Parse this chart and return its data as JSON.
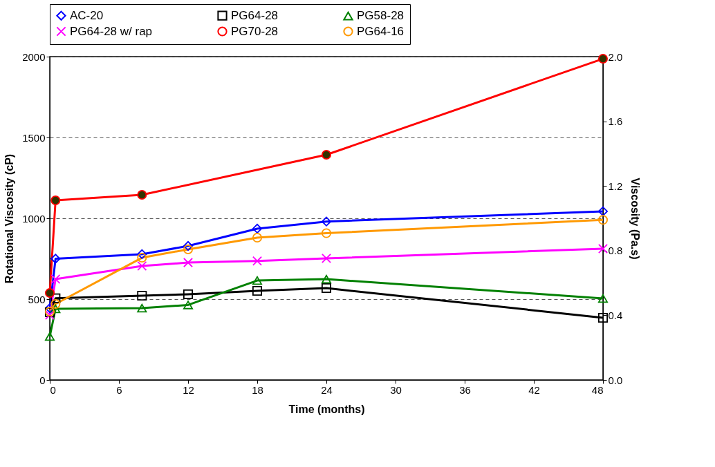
{
  "chart_data": {
    "type": "line",
    "xlabel": "Time (months)",
    "ylabel": "Rotational Viscosity (cP)",
    "y2label": "Viscosity (Pa.s)",
    "xlim": [
      0,
      48
    ],
    "xticks": [
      0,
      6,
      12,
      18,
      24,
      30,
      36,
      42,
      48
    ],
    "ylim": [
      0,
      2000
    ],
    "yticks": [
      0,
      500,
      1000,
      1500,
      2000
    ],
    "y2lim": [
      0,
      2
    ],
    "y2ticks": [
      {
        "value": 0,
        "label": "0.0"
      },
      {
        "value": 0.4,
        "label": "0.4"
      },
      {
        "value": 0.8,
        "label": "0.8"
      },
      {
        "value": 1.2,
        "label": "1.2"
      },
      {
        "value": 1.6,
        "label": "1.6"
      },
      {
        "value": 2,
        "label": "2.0"
      }
    ],
    "grid": "y",
    "legend": "top",
    "line_style": "solid",
    "series": [
      {
        "name": "AC-20",
        "color": "#0000ff",
        "marker": "diamond",
        "x": [
          0,
          0.5,
          8,
          12,
          18,
          24,
          48
        ],
        "values": [
          444,
          750,
          778,
          829,
          936,
          980,
          1043
        ]
      },
      {
        "name": "PG64-28",
        "color": "#000000",
        "marker": "square",
        "x": [
          0,
          0.5,
          8,
          12,
          18,
          24,
          48
        ],
        "values": [
          419,
          505,
          521,
          530,
          551,
          568,
          385
        ]
      },
      {
        "name": "PG58-28",
        "color": "#008000",
        "marker": "triangle",
        "x": [
          0,
          0.5,
          8,
          12,
          18,
          24,
          48
        ],
        "values": [
          269,
          440,
          444,
          464,
          615,
          624,
          504
        ]
      },
      {
        "name": "PG64-28 w/ rap",
        "color": "#ff00ff",
        "marker": "cross",
        "x": [
          0,
          0.5,
          8,
          12,
          18,
          24,
          48
        ],
        "values": [
          402,
          624,
          705,
          726,
          736,
          752,
          812
        ]
      },
      {
        "name": "PG70-28",
        "color": "#ff0000",
        "marker": "circle",
        "x": [
          0,
          0.5,
          8,
          24,
          48
        ],
        "values": [
          538,
          1111,
          1145,
          1393,
          1987
        ]
      },
      {
        "name": "PG64-16",
        "color": "#ff9900",
        "marker": "circle",
        "x": [
          0,
          0.5,
          8,
          12,
          18,
          24,
          48
        ],
        "values": [
          423,
          470,
          756,
          808,
          880,
          908,
          990
        ]
      }
    ]
  }
}
